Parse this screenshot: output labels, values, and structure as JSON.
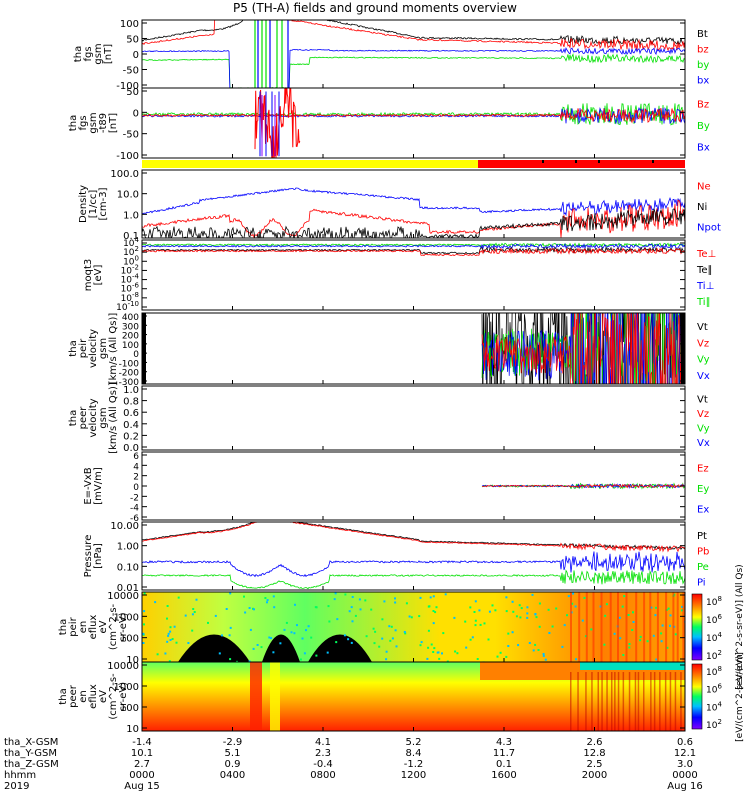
{
  "title": "P5 (TH-A) fields and ground moments overview",
  "colors": {
    "black": "#000000",
    "red": "#ff0000",
    "green": "#00e000",
    "blue": "#0000ff",
    "yellow": "#ffff00"
  },
  "chart_data": {
    "type": "line",
    "panels": [
      {
        "id": "fgs",
        "ylabel": [
          "tha",
          "fgs",
          "gsm",
          "[nT]"
        ],
        "ylim": [
          -100,
          100
        ],
        "yticks": [
          "100",
          "50",
          "0",
          "-50",
          "-100"
        ],
        "legend": [
          {
            "name": "Bt",
            "color": "black"
          },
          {
            "name": "bz",
            "color": "red"
          },
          {
            "name": "by",
            "color": "green"
          },
          {
            "name": "bx",
            "color": "blue"
          }
        ]
      },
      {
        "id": "fgs-t89",
        "ylabel": [
          "tha",
          "fgs",
          "gsm",
          "-t89",
          "[nT]"
        ],
        "ylim": [
          -120,
          80
        ],
        "yticks": [
          "50",
          "0",
          "-50",
          "-100"
        ],
        "legend": [
          {
            "name": "Bz",
            "color": "red"
          },
          {
            "name": "By",
            "color": "green"
          },
          {
            "name": "Bx",
            "color": "blue"
          }
        ]
      },
      {
        "id": "density",
        "ylabel": [
          "Density",
          "[1/cc]",
          "[cm-3]"
        ],
        "scale": "log",
        "yticks": [
          "100.0",
          "10.0",
          "1.0",
          "0.1"
        ],
        "legend": [
          {
            "name": "Ne",
            "color": "red"
          },
          {
            "name": "Ni",
            "color": "black"
          },
          {
            "name": "Npot",
            "color": "blue"
          }
        ]
      },
      {
        "id": "temp",
        "ylabel": [
          "moqt3",
          "[eV]"
        ],
        "scale": "log",
        "yticks": [
          "10^4",
          "10^2",
          "10^0",
          "10^-2",
          "10^-4",
          "10^-6",
          "10^-8",
          "10^-10"
        ],
        "legend": [
          {
            "name": "Te⊥",
            "color": "red"
          },
          {
            "name": "Te∥",
            "color": "black"
          },
          {
            "name": "Ti⊥",
            "color": "blue"
          },
          {
            "name": "Ti∥",
            "color": "green"
          }
        ]
      },
      {
        "id": "peir-vel",
        "ylabel": [
          "tha",
          "peir",
          "velocity",
          "gsm",
          "[km/s (All Qs)]"
        ],
        "ylim": [
          -300,
          400
        ],
        "yticks": [
          "400",
          "300",
          "200",
          "100",
          "0",
          "-100",
          "-200",
          "-300"
        ],
        "legend": [
          {
            "name": "Vt",
            "color": "black"
          },
          {
            "name": "Vz",
            "color": "red"
          },
          {
            "name": "Vy",
            "color": "green"
          },
          {
            "name": "Vx",
            "color": "blue"
          }
        ]
      },
      {
        "id": "peer-vel",
        "ylabel": [
          "tha",
          "peer",
          "velocity",
          "gsm",
          "[km/s (All Qs)]"
        ],
        "ylim": [
          0,
          1
        ],
        "yticks": [
          "1.0",
          "0.8",
          "0.6",
          "0.4",
          "0.2",
          "0.0"
        ],
        "legend": [
          {
            "name": "Vt",
            "color": "black"
          },
          {
            "name": "Vz",
            "color": "red"
          },
          {
            "name": "Vy",
            "color": "green"
          },
          {
            "name": "Vx",
            "color": "blue"
          }
        ]
      },
      {
        "id": "efield",
        "ylabel": [
          "E=-VxB",
          "[mV/m]"
        ],
        "ylim": [
          -6,
          6
        ],
        "yticks": [
          "6",
          "4",
          "2",
          "0",
          "-2",
          "-4",
          "-6"
        ],
        "legend": [
          {
            "name": "Ez",
            "color": "red"
          },
          {
            "name": "Ey",
            "color": "green"
          },
          {
            "name": "Ex",
            "color": "blue"
          }
        ]
      },
      {
        "id": "pressure",
        "ylabel": [
          "Pressure",
          "[nPa]"
        ],
        "scale": "log",
        "yticks": [
          "10.00",
          "1.00",
          "0.10",
          "0.01"
        ],
        "legend": [
          {
            "name": "Pt",
            "color": "black"
          },
          {
            "name": "Pb",
            "color": "red"
          },
          {
            "name": "Pe",
            "color": "green"
          },
          {
            "name": "Pi",
            "color": "blue"
          }
        ]
      },
      {
        "id": "peir-spec",
        "ylabel": [
          "tha",
          "peir",
          "en",
          "eflux",
          "eV",
          "(cm^2-s-",
          "sr-eV)"
        ],
        "scale": "log",
        "yticks": [
          "10000",
          "1000",
          "100",
          "10"
        ],
        "colorbar": {
          "ticks": [
            "10^8",
            "10^6",
            "10^4",
            "10^2"
          ],
          "label": "[eV/(cm^2-s-sr-eV)] (All Qs)"
        }
      },
      {
        "id": "peer-spec",
        "ylabel": [
          "tha",
          "peer",
          "en",
          "eflux",
          "eV",
          "(cm^2-s-",
          "sr-eV)"
        ],
        "scale": "log",
        "yticks": [
          "10000",
          "1000",
          "100",
          "10"
        ],
        "colorbar": {
          "ticks": [
            "10^8",
            "10^6",
            "10^4",
            "10^2"
          ],
          "label": "[eV/(cm^2-s-sr-eV)]"
        }
      }
    ],
    "x_axis": {
      "rows": [
        {
          "label": "tha_X-GSM",
          "values": [
            "-1.4",
            "-2.9",
            "4.1",
            "5.2",
            "4.3",
            "2.6",
            "0.6"
          ]
        },
        {
          "label": "tha_Y-GSM",
          "values": [
            "10.1",
            "5.1",
            "2.3",
            "8.4",
            "11.7",
            "12.8",
            "12.1"
          ]
        },
        {
          "label": "tha_Z-GSM",
          "values": [
            "2.7",
            "0.9",
            "-0.4",
            "-1.2",
            "0.1",
            "2.5",
            "3.0"
          ]
        },
        {
          "label": "hhmm",
          "values": [
            "0000",
            "0400",
            "0800",
            "1200",
            "1600",
            "2000",
            "0000"
          ]
        },
        {
          "label": "2019",
          "values": [
            "Aug 15",
            "",
            "",
            "",
            "",
            "",
            "Aug 16"
          ]
        }
      ]
    }
  }
}
